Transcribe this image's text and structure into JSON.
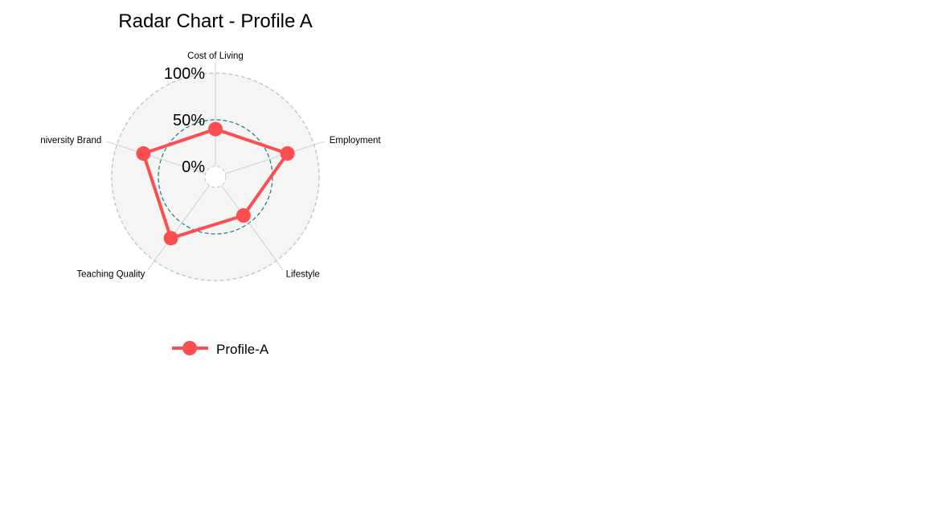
{
  "chart_data": {
    "type": "radar",
    "title": "Radar Chart - Profile A",
    "axes": [
      "Cost of Living",
      "Employment",
      "Lifestyle",
      "Teaching Quality",
      "University Brand"
    ],
    "grid_labels": [
      "0%",
      "50%",
      "100%"
    ],
    "range": [
      0,
      100
    ],
    "grid_line_values": [
      0,
      50,
      100
    ],
    "series": [
      {
        "name": "Profile-A",
        "color": "#FC4E51",
        "values": [
          40,
          70,
          40,
          70,
          70
        ]
      }
    ],
    "legend_position": "bottom",
    "colors": {
      "background_fill": "#F5F5F3",
      "outer_circle": "#BFBFBF",
      "mid_circle": "#1A7A8C",
      "axis_line": "#D0D0D0",
      "series": "#FC4E51"
    }
  }
}
